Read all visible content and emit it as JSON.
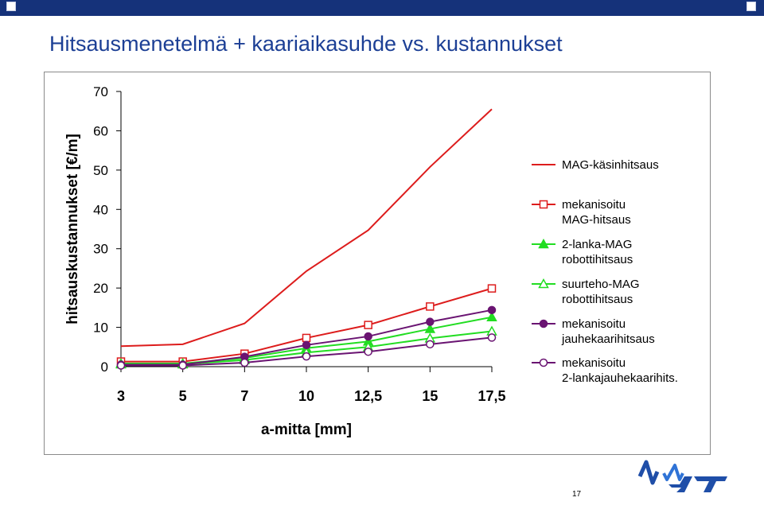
{
  "slide": {
    "title": "Hitsausmenetelmä + kaariaikasuhde vs. kustannukset",
    "page_number": "17",
    "logo_text": "VTT",
    "colors": {
      "top_bar": "#15327a",
      "title": "#1c3f95",
      "logo": "#1f4ea8"
    }
  },
  "chart_data": {
    "type": "line",
    "ylabel": "hitsauskustannukset [€/m]",
    "xlabel": "a-mitta [mm]",
    "categories": [
      "3",
      "5",
      "7",
      "10",
      "12,5",
      "15",
      "17,5"
    ],
    "yticks": [
      0,
      10,
      20,
      30,
      40,
      50,
      60,
      70
    ],
    "ylim": [
      0,
      70
    ],
    "legend_position": "right",
    "series": [
      {
        "name": "MAG-käsinhitsaus",
        "color": "#dd1c1c",
        "marker": "none",
        "values": [
          5.2,
          5.7,
          11,
          24.3,
          34.7,
          50.8,
          65.5
        ]
      },
      {
        "name": "mekanisoitu MAG-hitsaus",
        "color": "#dd1c1c",
        "marker": "square-open",
        "values": [
          1.3,
          1.3,
          3.3,
          7.3,
          10.6,
          15.3,
          19.9
        ]
      },
      {
        "name": "2-lanka-MAG robottihitsaus",
        "color": "#22dd22",
        "marker": "triangle-filled",
        "values": [
          0.8,
          0.8,
          2.2,
          4.7,
          6.4,
          9.6,
          12.6
        ]
      },
      {
        "name": "suurteho-MAG robottihitsaus",
        "color": "#22dd22",
        "marker": "triangle-open",
        "values": [
          0.6,
          0.6,
          1.7,
          3.6,
          5.0,
          7.2,
          9.0
        ]
      },
      {
        "name": "mekanisoitu jauhekaarihitsaus",
        "color": "#6a1472",
        "marker": "circle-filled",
        "values": [
          0.5,
          0.5,
          2.5,
          5.5,
          7.7,
          11.4,
          14.4
        ]
      },
      {
        "name": "mekanisoitu 2-lankajauhekaarihits.",
        "color": "#6a1472",
        "marker": "circle-open",
        "values": [
          0.3,
          0.3,
          1.0,
          2.6,
          3.8,
          5.7,
          7.4
        ]
      }
    ],
    "legend": [
      {
        "lines": [
          "MAG-käsinhitsaus"
        ]
      },
      {
        "lines": [
          "mekanisoitu",
          "MAG-hitsaus"
        ]
      },
      {
        "lines": [
          "2-lanka-MAG",
          "robottihitsaus"
        ]
      },
      {
        "lines": [
          "suurteho-MAG",
          "robottihitsaus"
        ]
      },
      {
        "lines": [
          "mekanisoitu",
          "jauhekaarihitsaus"
        ]
      },
      {
        "lines": [
          "mekanisoitu",
          "2-lankajauhekaarihits."
        ]
      }
    ]
  }
}
